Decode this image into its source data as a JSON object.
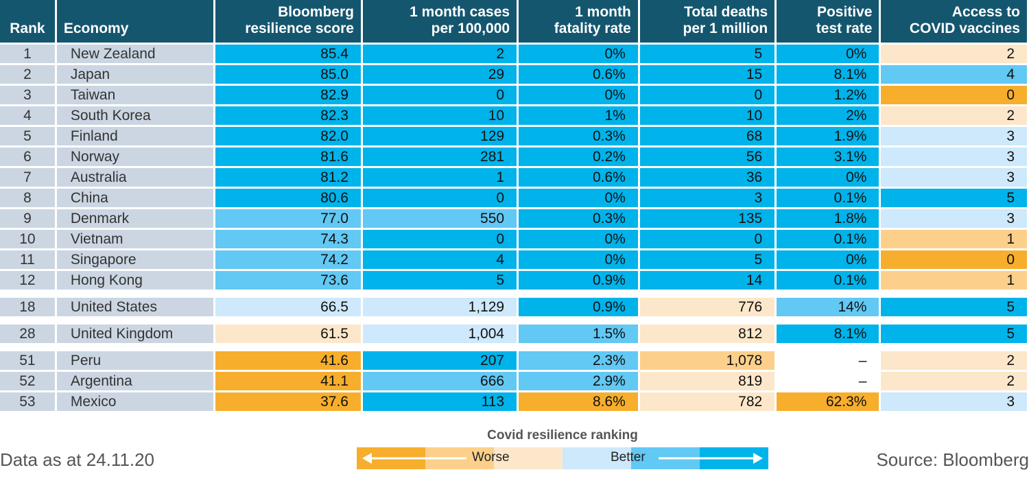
{
  "chart_data": {
    "type": "table",
    "columns": [
      "Rank",
      "Economy",
      "Bloomberg resilience score",
      "1 month cases per 100,000",
      "1 month fatality rate",
      "Total deaths per 1 million",
      "Positive test rate",
      "Access to COVID vaccines"
    ],
    "header_lines": [
      [
        "Rank"
      ],
      [
        "Economy"
      ],
      [
        "Bloomberg",
        "resilience score"
      ],
      [
        "1 month cases",
        "per 100,000"
      ],
      [
        "1 month",
        "fatality rate"
      ],
      [
        "Total deaths",
        "per 1 million"
      ],
      [
        "Positive",
        "test rate"
      ],
      [
        "Access to",
        "COVID vaccines"
      ]
    ],
    "rows": [
      {
        "rank": "1",
        "economy": "New Zealand",
        "values": [
          "85.4",
          "2",
          "0%",
          "5",
          "0%",
          "2"
        ],
        "shades": [
          "b1",
          "b1",
          "b1",
          "b1",
          "b1",
          "w3"
        ],
        "gap_before": false
      },
      {
        "rank": "2",
        "economy": "Japan",
        "values": [
          "85.0",
          "29",
          "0.6%",
          "15",
          "8.1%",
          "4"
        ],
        "shades": [
          "b1",
          "b1",
          "b1",
          "b1",
          "b1",
          "b2"
        ],
        "gap_before": false
      },
      {
        "rank": "3",
        "economy": "Taiwan",
        "values": [
          "82.9",
          "0",
          "0%",
          "0",
          "1.2%",
          "0"
        ],
        "shades": [
          "b1",
          "b1",
          "b1",
          "b1",
          "b1",
          "w1"
        ],
        "gap_before": false
      },
      {
        "rank": "4",
        "economy": "South Korea",
        "values": [
          "82.3",
          "10",
          "1%",
          "10",
          "2%",
          "2"
        ],
        "shades": [
          "b1",
          "b1",
          "b1",
          "b1",
          "b1",
          "w3"
        ],
        "gap_before": false
      },
      {
        "rank": "5",
        "economy": "Finland",
        "values": [
          "82.0",
          "129",
          "0.3%",
          "68",
          "1.9%",
          "3"
        ],
        "shades": [
          "b1",
          "b1",
          "b1",
          "b1",
          "b1",
          "b3"
        ],
        "gap_before": false
      },
      {
        "rank": "6",
        "economy": "Norway",
        "values": [
          "81.6",
          "281",
          "0.2%",
          "56",
          "3.1%",
          "3"
        ],
        "shades": [
          "b1",
          "b1",
          "b1",
          "b1",
          "b1",
          "b3"
        ],
        "gap_before": false
      },
      {
        "rank": "7",
        "economy": "Australia",
        "values": [
          "81.2",
          "1",
          "0.6%",
          "36",
          "0%",
          "3"
        ],
        "shades": [
          "b1",
          "b1",
          "b1",
          "b1",
          "b1",
          "b3"
        ],
        "gap_before": false
      },
      {
        "rank": "8",
        "economy": "China",
        "values": [
          "80.6",
          "0",
          "0%",
          "3",
          "0.1%",
          "5"
        ],
        "shades": [
          "b1",
          "b1",
          "b1",
          "b1",
          "b1",
          "b1"
        ],
        "gap_before": false
      },
      {
        "rank": "9",
        "economy": "Denmark",
        "values": [
          "77.0",
          "550",
          "0.3%",
          "135",
          "1.8%",
          "3"
        ],
        "shades": [
          "b2",
          "b2",
          "b1",
          "b1",
          "b1",
          "b3"
        ],
        "gap_before": false
      },
      {
        "rank": "10",
        "economy": "Vietnam",
        "values": [
          "74.3",
          "0",
          "0%",
          "0",
          "0.1%",
          "1"
        ],
        "shades": [
          "b2",
          "b1",
          "b1",
          "b1",
          "b1",
          "w2"
        ],
        "gap_before": false
      },
      {
        "rank": "11",
        "economy": "Singapore",
        "values": [
          "74.2",
          "4",
          "0%",
          "5",
          "0%",
          "0"
        ],
        "shades": [
          "b2",
          "b1",
          "b1",
          "b1",
          "b1",
          "w1"
        ],
        "gap_before": false
      },
      {
        "rank": "12",
        "economy": "Hong Kong",
        "values": [
          "73.6",
          "5",
          "0.9%",
          "14",
          "0.1%",
          "1"
        ],
        "shades": [
          "b2",
          "b1",
          "b1",
          "b1",
          "b1",
          "w2"
        ],
        "gap_before": false
      },
      {
        "rank": "18",
        "economy": "United States",
        "values": [
          "66.5",
          "1,129",
          "0.9%",
          "776",
          "14%",
          "5"
        ],
        "shades": [
          "b3",
          "b3",
          "b1",
          "w3",
          "b2",
          "b1"
        ],
        "gap_before": true
      },
      {
        "rank": "28",
        "economy": "United Kingdom",
        "values": [
          "61.5",
          "1,004",
          "1.5%",
          "812",
          "8.1%",
          "5"
        ],
        "shades": [
          "w3",
          "b3",
          "b2",
          "w3",
          "b1",
          "b1"
        ],
        "gap_before": true
      },
      {
        "rank": "51",
        "economy": "Peru",
        "values": [
          "41.6",
          "207",
          "2.3%",
          "1,078",
          "–",
          "2"
        ],
        "shades": [
          "w1",
          "b1",
          "b2",
          "w2",
          "na",
          "w3"
        ],
        "gap_before": true
      },
      {
        "rank": "52",
        "economy": "Argentina",
        "values": [
          "41.1",
          "666",
          "2.9%",
          "819",
          "–",
          "2"
        ],
        "shades": [
          "w1",
          "b2",
          "b2",
          "w3",
          "na",
          "w3"
        ],
        "gap_before": false
      },
      {
        "rank": "53",
        "economy": "Mexico",
        "values": [
          "37.6",
          "113",
          "8.6%",
          "782",
          "62.3%",
          "3"
        ],
        "shades": [
          "w1",
          "b1",
          "w1",
          "w3",
          "w1",
          "b3"
        ],
        "gap_before": false
      }
    ],
    "colors": {
      "header": "#15566f",
      "label_cell": "#cbd6e2",
      "b1": "#00b3ea",
      "b2": "#62c8f4",
      "b3": "#cde9fb",
      "w1": "#f7ae2c",
      "w2": "#fcd08b",
      "w3": "#fde7ca"
    },
    "legend": {
      "title": "Covid resilience ranking",
      "worse_label": "Worse",
      "better_label": "Better"
    }
  },
  "footer": {
    "note": "Data as at 24.11.20",
    "source": "Source: Bloomberg"
  }
}
